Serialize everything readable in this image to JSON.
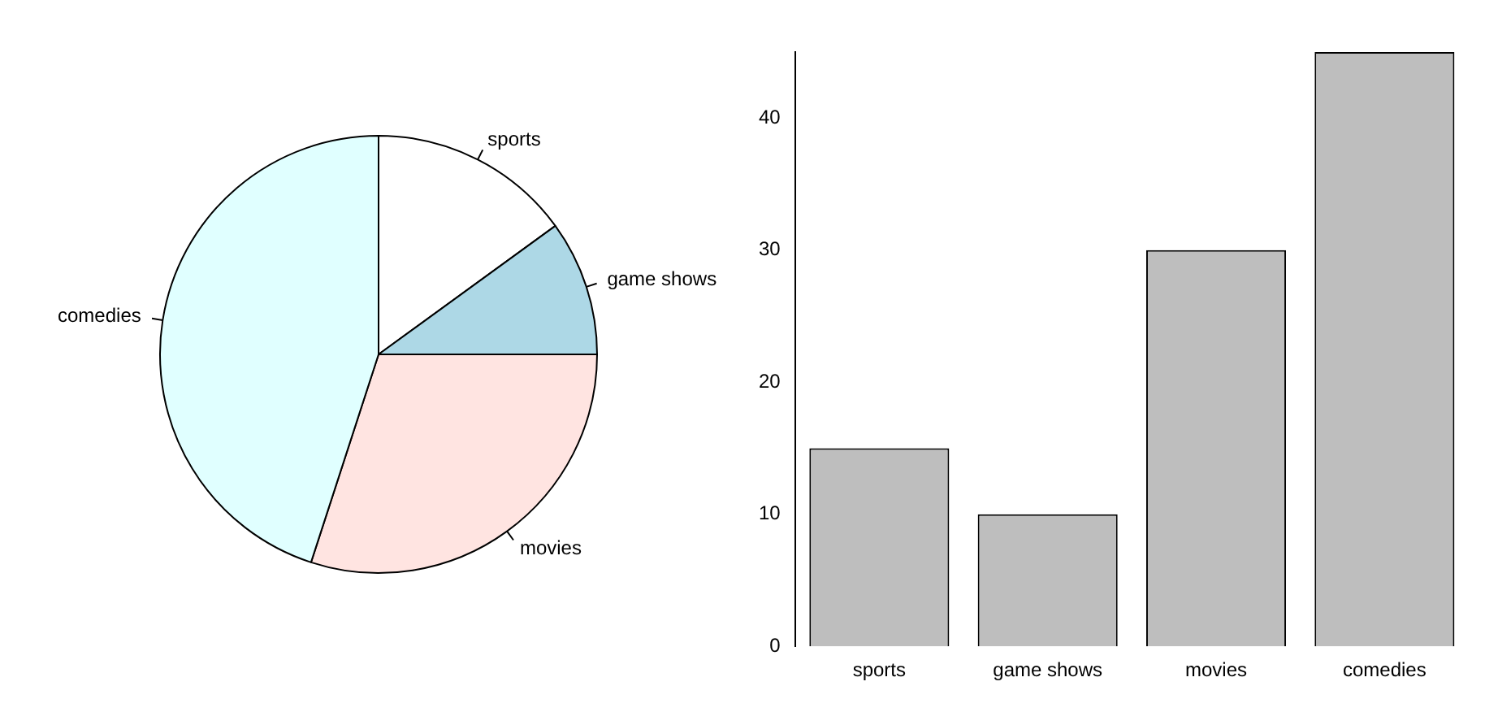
{
  "chart_data": [
    {
      "type": "pie",
      "categories": [
        "sports",
        "game shows",
        "movies",
        "comedies"
      ],
      "values": [
        15,
        10,
        30,
        45
      ],
      "colors": [
        "#ffffff",
        "#add8e6",
        "#ffe4e1",
        "#e0ffff"
      ],
      "legend": false
    },
    {
      "type": "bar",
      "categories": [
        "sports",
        "game shows",
        "movies",
        "comedies"
      ],
      "values": [
        15,
        10,
        30,
        45
      ],
      "color": "#bebebe",
      "ylim": [
        0,
        45
      ],
      "yticks": [
        0,
        10,
        20,
        30,
        40
      ],
      "grid": false,
      "legend": false
    }
  ]
}
